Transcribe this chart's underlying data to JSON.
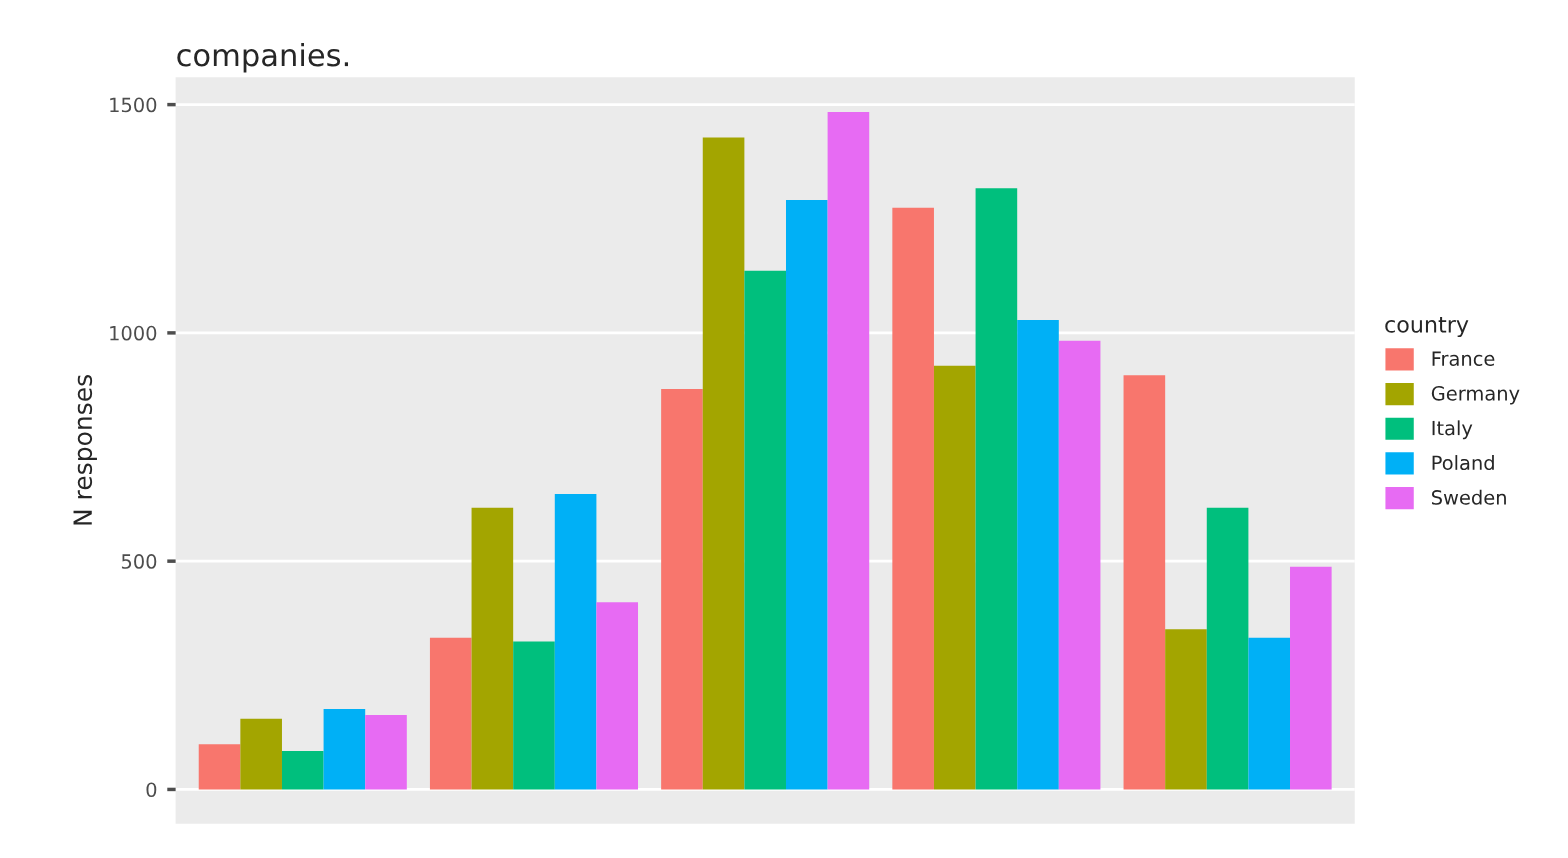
{
  "chart_data": {
    "type": "bar",
    "title": "companies.",
    "ylabel": "N responses",
    "legend_title": "country",
    "categories": [
      null,
      null,
      null,
      null,
      null
    ],
    "series": [
      {
        "name": "France",
        "color": "#f8766d",
        "values": [
          99,
          332,
          877,
          1274,
          907
        ]
      },
      {
        "name": "Germany",
        "color": "#a3a500",
        "values": [
          155,
          617,
          1428,
          928,
          351
        ]
      },
      {
        "name": "Italy",
        "color": "#00bf7d",
        "values": [
          84,
          324,
          1136,
          1317,
          617
        ]
      },
      {
        "name": "Poland",
        "color": "#00b0f6",
        "values": [
          176,
          647,
          1291,
          1028,
          332
        ]
      },
      {
        "name": "Sweden",
        "color": "#e76bf3",
        "values": [
          163,
          410,
          1484,
          983,
          488
        ]
      }
    ],
    "ylim": [
      -75,
      1560
    ],
    "yticks": [
      0,
      500,
      1000,
      1500
    ],
    "grid": "y",
    "legend": "right"
  }
}
